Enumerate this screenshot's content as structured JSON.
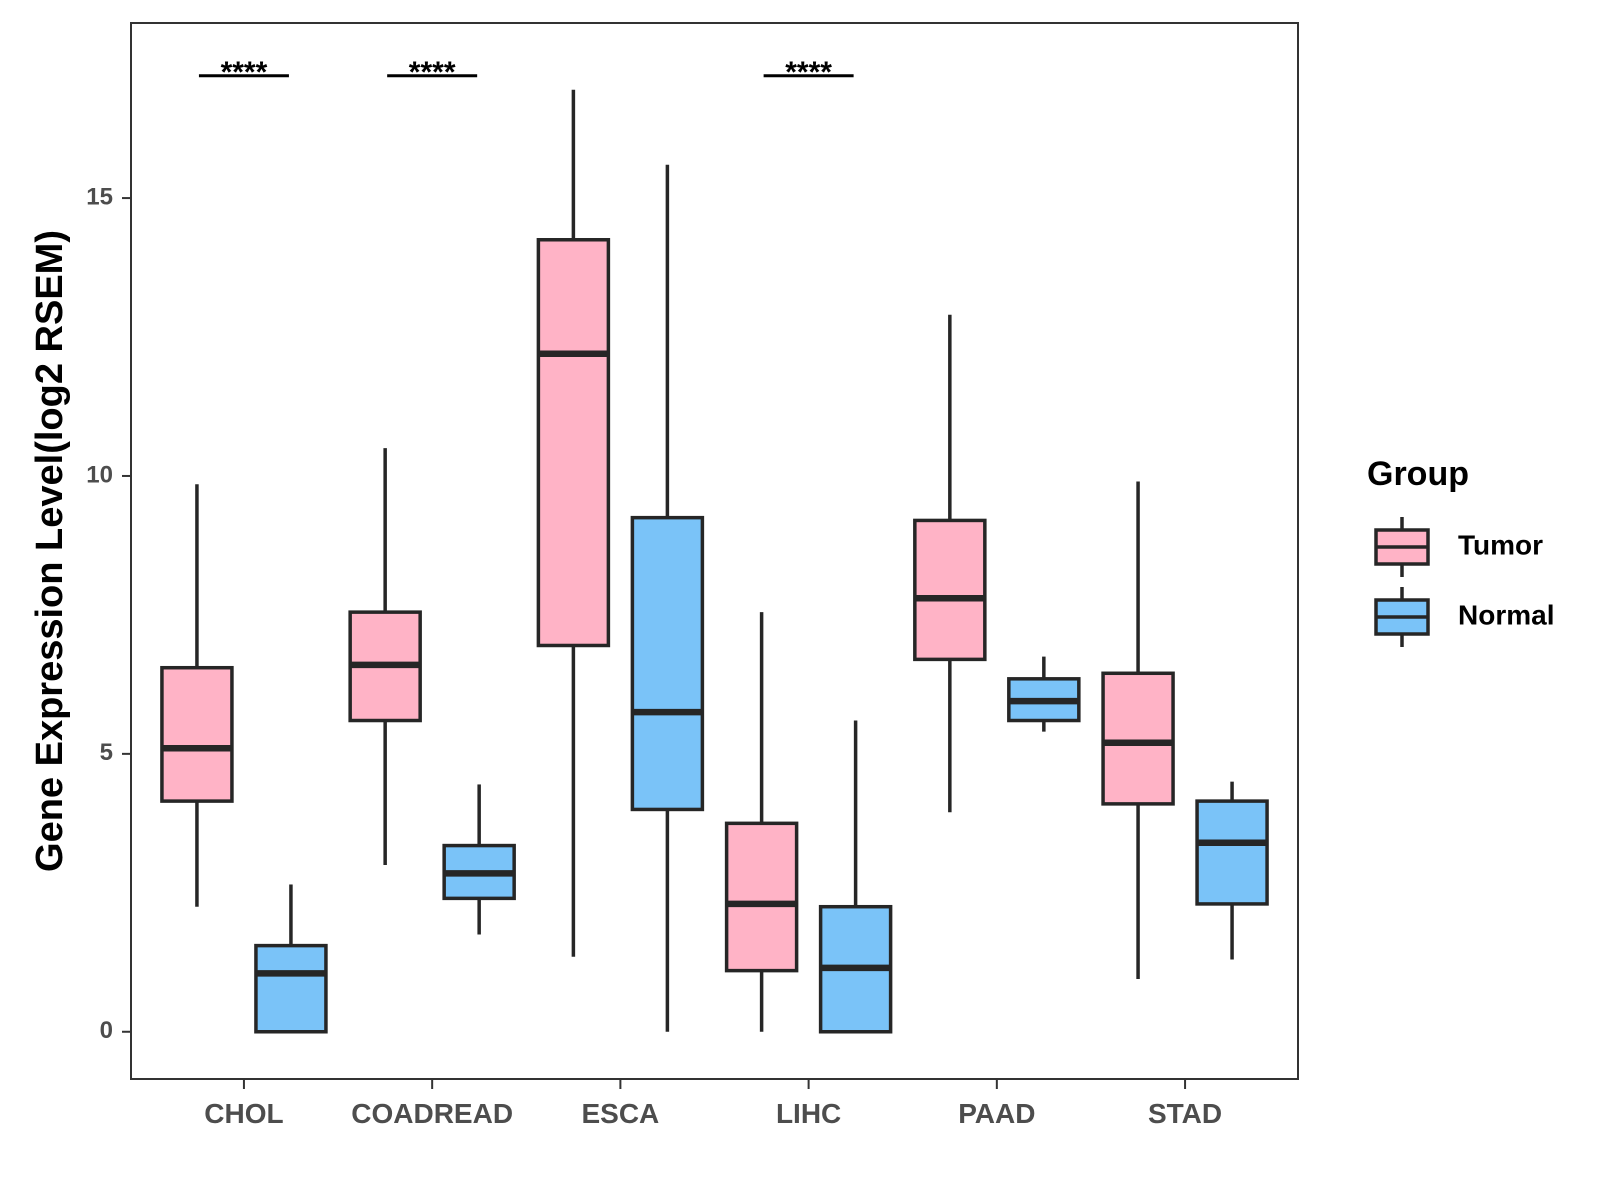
{
  "chart_data": {
    "type": "boxplot",
    "title": "",
    "xlabel": "",
    "ylabel": "Gene Expression Level(log2 RSEM)",
    "ylim": [
      -0.85,
      18.15
    ],
    "yticks": [
      0,
      5,
      10,
      15
    ],
    "grid": false,
    "categories": [
      "CHOL",
      "COADREAD",
      "ESCA",
      "LIHC",
      "PAAD",
      "STAD"
    ],
    "legend": {
      "title": "Group",
      "position": "right",
      "entries": [
        {
          "label": "Tumor",
          "color": "#FFB3C6"
        },
        {
          "label": "Normal",
          "color": "#7AC3F8"
        }
      ]
    },
    "series": [
      {
        "name": "Tumor",
        "color": "#FFB3C6",
        "boxes": [
          {
            "category": "CHOL",
            "whisker_low": 2.25,
            "q1": 4.15,
            "median": 5.1,
            "q3": 6.55,
            "whisker_high": 9.85
          },
          {
            "category": "COADREAD",
            "whisker_low": 3.0,
            "q1": 5.6,
            "median": 6.6,
            "q3": 7.55,
            "whisker_high": 10.5
          },
          {
            "category": "ESCA",
            "whisker_low": 1.35,
            "q1": 6.95,
            "median": 12.2,
            "q3": 14.25,
            "whisker_high": 16.95
          },
          {
            "category": "LIHC",
            "whisker_low": 0.0,
            "q1": 1.1,
            "median": 2.3,
            "q3": 3.75,
            "whisker_high": 7.55
          },
          {
            "category": "PAAD",
            "whisker_low": 3.95,
            "q1": 6.7,
            "median": 7.8,
            "q3": 9.2,
            "whisker_high": 12.9
          },
          {
            "category": "STAD",
            "whisker_low": 0.95,
            "q1": 4.1,
            "median": 5.2,
            "q3": 6.45,
            "whisker_high": 9.9
          }
        ]
      },
      {
        "name": "Normal",
        "color": "#7AC3F8",
        "boxes": [
          {
            "category": "CHOL",
            "whisker_low": 0.0,
            "q1": 0.0,
            "median": 1.05,
            "q3": 1.55,
            "whisker_high": 2.65
          },
          {
            "category": "COADREAD",
            "whisker_low": 1.75,
            "q1": 2.4,
            "median": 2.85,
            "q3": 3.35,
            "whisker_high": 4.45
          },
          {
            "category": "ESCA",
            "whisker_low": 0.0,
            "q1": 4.0,
            "median": 5.75,
            "q3": 9.25,
            "whisker_high": 15.6
          },
          {
            "category": "LIHC",
            "whisker_low": 0.0,
            "q1": 0.0,
            "median": 1.15,
            "q3": 2.25,
            "whisker_high": 5.6
          },
          {
            "category": "PAAD",
            "whisker_low": 5.4,
            "q1": 5.6,
            "median": 5.95,
            "q3": 6.35,
            "whisker_high": 6.75
          },
          {
            "category": "STAD",
            "whisker_low": 1.3,
            "q1": 2.3,
            "median": 3.4,
            "q3": 4.15,
            "whisker_high": 4.5
          }
        ]
      }
    ],
    "annotations": [
      {
        "category": "CHOL",
        "text": "****",
        "y": 17.2
      },
      {
        "category": "COADREAD",
        "text": "****",
        "y": 17.2
      },
      {
        "category": "LIHC",
        "text": "****",
        "y": 17.2
      }
    ]
  }
}
